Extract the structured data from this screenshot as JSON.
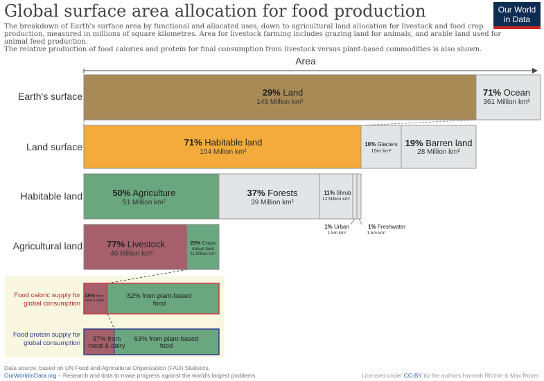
{
  "header": {
    "title": "Global surface area allocation for food production",
    "subtitle_lines": [
      "The breakdown of Earth's surface area by functional and allocated uses, down to agricultural land allocation for livestock and food crop",
      "production, measured in millions of square kilometres. Area for livestock farming includes grazing land for animals, and arable land used for",
      "animal feed production.",
      "The relative production of food calories and protein for final consumption from livestock versus plant-based commodities is also shown."
    ]
  },
  "logo": {
    "line1": "Our World",
    "line2": "in Data"
  },
  "axis": {
    "label": "Area"
  },
  "colors": {
    "land": "#a88a56",
    "ocean": "#e3e4e6",
    "habitable": "#f5ab3b",
    "glaciers": "#e3e4e6",
    "barren": "#e3e4e6",
    "agriculture": "#6aa67e",
    "forests": "#e3e4e6",
    "shrub": "#e3e4e6",
    "livestock": "#a5606c",
    "crops": "#6aa67e",
    "calorie_border": "#c7373d",
    "protein_border": "#2d3c8f",
    "panel_bg": "#f9f7df",
    "row_label": "#333333",
    "red_text": "#b3262d",
    "blue_text": "#2d3a8c"
  },
  "chart_data": {
    "type": "bar",
    "title": "Global surface area allocation for food production",
    "unit": "Million km²",
    "rows": [
      {
        "label": "Earth's surface",
        "segments": [
          {
            "name": "Land",
            "pct": "29%",
            "value": 149,
            "value_text": "149 Million km²"
          },
          {
            "name": "Ocean",
            "pct": "71%",
            "value": 361,
            "value_text": "361 Million km²"
          }
        ]
      },
      {
        "label": "Land surface",
        "segments": [
          {
            "name": "Habitable land",
            "pct": "71%",
            "value": 104,
            "value_text": "104 Million km²"
          },
          {
            "name": "Glaciers",
            "pct": "10%",
            "value": 15,
            "value_text": "15m km²"
          },
          {
            "name": "Barren land",
            "pct": "19%",
            "value": 28,
            "value_text": "28 Million km²"
          }
        ]
      },
      {
        "label": "Habitable land",
        "segments": [
          {
            "name": "Agriculture",
            "pct": "50%",
            "value": 51,
            "value_text": "51 Million km²"
          },
          {
            "name": "Forests",
            "pct": "37%",
            "value": 39,
            "value_text": "39 Million km²"
          },
          {
            "name": "Shrub",
            "pct": "11%",
            "value": 12,
            "value_text": "12 Million km²"
          },
          {
            "name": "Urban",
            "pct": "1%",
            "value": 1.5,
            "value_text": "1.5m km²"
          },
          {
            "name": "Freshwater",
            "pct": "1%",
            "value": 1.5,
            "value_text": "1.5m km²"
          }
        ]
      },
      {
        "label": "Agricultural land",
        "segments": [
          {
            "name": "Livestock",
            "pct": "77%",
            "value": 40,
            "value_text": "40 Million km²"
          },
          {
            "name": "Crops minus feed",
            "pct": "23%",
            "value": 11,
            "value_text": "11 Million km²"
          }
        ]
      }
    ],
    "supply": [
      {
        "label_lines": [
          "Food caloric supply for",
          "global consumption"
        ],
        "segments": [
          {
            "name": "from meat & dairy",
            "pct": "18%",
            "value": 18
          },
          {
            "name": "from plant-based food",
            "pct": "82%",
            "value": 82
          }
        ]
      },
      {
        "label_lines": [
          "Food protein supply for",
          "global consumption"
        ],
        "segments": [
          {
            "name": "from meat & dairy",
            "pct": "37%",
            "value": 37
          },
          {
            "name": "from plant-based food",
            "pct": "63%",
            "value": 63
          }
        ]
      }
    ],
    "text": {
      "land_pct": "29%",
      "land_name": "Land",
      "land_val": "149 Million km²",
      "ocean_pct": "71%",
      "ocean_name": "Ocean",
      "ocean_val": "361 Million km²",
      "hab_pct": "71%",
      "hab_name": "Habitable land",
      "hab_val": "104 Million km²",
      "glac_pct": "10%",
      "glac_name": "Glaciers",
      "glac_val": "15m km²",
      "barren_pct": "19%",
      "barren_name": "Barren land",
      "barren_val": "28 Million km²",
      "agri_pct": "50%",
      "agri_name": "Agriculture",
      "agri_val": "51 Million km²",
      "forest_pct": "37%",
      "forest_name": "Forests",
      "forest_val": "39 Million km²",
      "shrub_pct": "11%",
      "shrub_name": "Shrub",
      "shrub_val": "12 Million km²",
      "urban_pct": "1%",
      "urban_name": "Urban",
      "urban_val": "1.5m km²",
      "fresh_pct": "1%",
      "fresh_name": "Freshwater",
      "fresh_val": "1.5m km²",
      "live_pct": "77%",
      "live_name": "Livestock",
      "live_val": "40 Million km²",
      "crop_pct": "23%",
      "crop_name1": "Crops",
      "crop_name2": "minus feed",
      "crop_val": "11 Million km²",
      "cal_meat_pct": "18%",
      "cal_meat_name1": "from",
      "cal_meat_name2": "meat & dairy",
      "cal_plant_line1": "82% from plant-based",
      "cal_plant_line2": "food",
      "pro_meat_line1": "37% from",
      "pro_meat_line2": "meat & dairy",
      "pro_plant_line1": "63% from plant-based",
      "pro_plant_line2": "food"
    }
  },
  "footer": {
    "source": "Data source: based on UN Food and Agricultural Organization (FAO) Statistics.",
    "site": "OurWorldinData.org",
    "tagline": " – Research and data to make progress against the world's largest problems.",
    "license_prefix": "Licensed under ",
    "license": "CC-BY",
    "license_suffix": " by the authors Hannah Ritchie & Max Roser."
  }
}
